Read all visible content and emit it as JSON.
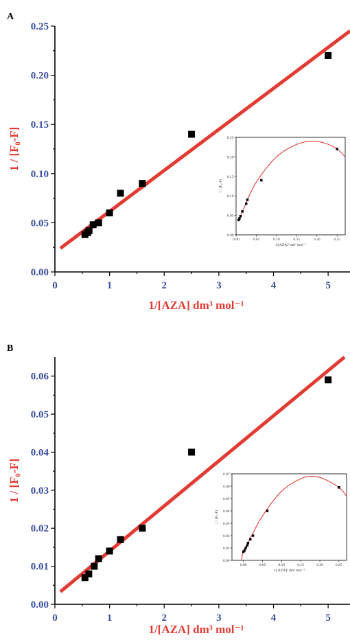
{
  "panels": [
    {
      "label": "A",
      "xlabel": "1/[AZA] dm³ mol⁻¹",
      "ylabel": "1 / [F₀-F]",
      "x_ticks": [
        "0",
        "1",
        "2",
        "3",
        "4",
        "5"
      ],
      "y_ticks": [
        "0.00",
        "0.05",
        "0.10",
        "0.15",
        "0.20",
        "0.25"
      ],
      "inset": {
        "xlabel": "1/[AZA]² dm³ mol⁻¹",
        "ylabel": "1 / [F₀-F]",
        "x_ticks": [
          "0.00",
          "0.05",
          "0.10",
          "0.15",
          "0.20",
          "0.25"
        ],
        "y_ticks": [
          "0.00",
          "0.05",
          "0.10",
          "0.15",
          "0.20",
          "0.25"
        ]
      }
    },
    {
      "label": "B",
      "xlabel": "1/[AZA] dm³ mol⁻¹",
      "ylabel": "1 / [F₀-F]",
      "x_ticks": [
        "0",
        "1",
        "2",
        "3",
        "4",
        "5"
      ],
      "y_ticks": [
        "0.00",
        "0.01",
        "0.02",
        "0.03",
        "0.04",
        "0.05",
        "0.06"
      ],
      "inset": {
        "xlabel": "1/[AZA]² dm³ mol⁻¹",
        "ylabel": "1 / [F₀-F]",
        "x_ticks": [
          "0.00",
          "0.05",
          "0.10",
          "0.15",
          "0.20",
          "0.25"
        ],
        "y_ticks": [
          "0.00",
          "0.01",
          "0.02",
          "0.03",
          "0.04",
          "0.05",
          "0.06",
          "0.07"
        ]
      }
    }
  ],
  "chart_data": [
    {
      "type": "scatter",
      "panel": "A",
      "xlim": [
        0,
        5.4
      ],
      "ylim": [
        0,
        0.25
      ],
      "line_color": "#e23b34",
      "marker_color": "#000000",
      "series": [
        {
          "points": [
            [
              0.55,
              0.038
            ],
            [
              0.6,
              0.04
            ],
            [
              0.625,
              0.042
            ],
            [
              0.7,
              0.048
            ],
            [
              0.8,
              0.05
            ],
            [
              1.0,
              0.06
            ],
            [
              1.2,
              0.08
            ],
            [
              1.6,
              0.09
            ],
            [
              2.5,
              0.14
            ],
            [
              5.0,
              0.22
            ]
          ]
        }
      ],
      "fit_line": [
        [
          0.1,
          0.024
        ],
        [
          5.4,
          0.245
        ]
      ],
      "inset": {
        "type": "scatter",
        "xlim": [
          0,
          0.27
        ],
        "ylim": [
          0,
          0.25
        ],
        "points": [
          [
            0.0064,
            0.038
          ],
          [
            0.0083,
            0.042
          ],
          [
            0.011,
            0.048
          ],
          [
            0.0156,
            0.06
          ],
          [
            0.025,
            0.08
          ],
          [
            0.028,
            0.09
          ],
          [
            0.0625,
            0.14
          ],
          [
            0.25,
            0.22
          ]
        ],
        "curve": [
          [
            0.0064,
            0.037
          ],
          [
            0.02,
            0.07
          ],
          [
            0.05,
            0.135
          ],
          [
            0.1,
            0.2
          ],
          [
            0.15,
            0.232
          ],
          [
            0.19,
            0.24
          ],
          [
            0.22,
            0.235
          ],
          [
            0.25,
            0.22
          ],
          [
            0.27,
            0.2
          ]
        ]
      }
    },
    {
      "type": "scatter",
      "panel": "B",
      "xlim": [
        0,
        5.4
      ],
      "ylim": [
        0,
        0.065
      ],
      "line_color": "#e23b34",
      "marker_color": "#000000",
      "series": [
        {
          "points": [
            [
              0.55,
              0.007
            ],
            [
              0.62,
              0.008
            ],
            [
              0.72,
              0.01
            ],
            [
              0.8,
              0.012
            ],
            [
              1.0,
              0.014
            ],
            [
              1.2,
              0.017
            ],
            [
              1.6,
              0.02
            ],
            [
              2.5,
              0.04
            ],
            [
              5.0,
              0.059
            ]
          ]
        }
      ],
      "fit_line": [
        [
          0.1,
          0.0033
        ],
        [
          5.3,
          0.065
        ]
      ],
      "inset": {
        "type": "scatter",
        "xlim": [
          -0.03,
          0.27
        ],
        "ylim": [
          0,
          0.07
        ],
        "points": [
          [
            0.0,
            0.007
          ],
          [
            0.003,
            0.008
          ],
          [
            0.006,
            0.01
          ],
          [
            0.01,
            0.012
          ],
          [
            0.012,
            0.014
          ],
          [
            0.018,
            0.017
          ],
          [
            0.025,
            0.02
          ],
          [
            0.0625,
            0.04
          ],
          [
            0.25,
            0.059
          ]
        ],
        "curve": [
          [
            -0.005,
            0.0
          ],
          [
            0.0,
            0.007
          ],
          [
            0.02,
            0.019
          ],
          [
            0.05,
            0.036
          ],
          [
            0.1,
            0.056
          ],
          [
            0.15,
            0.066
          ],
          [
            0.18,
            0.068
          ],
          [
            0.21,
            0.066
          ],
          [
            0.25,
            0.059
          ],
          [
            0.27,
            0.052
          ]
        ]
      }
    }
  ]
}
